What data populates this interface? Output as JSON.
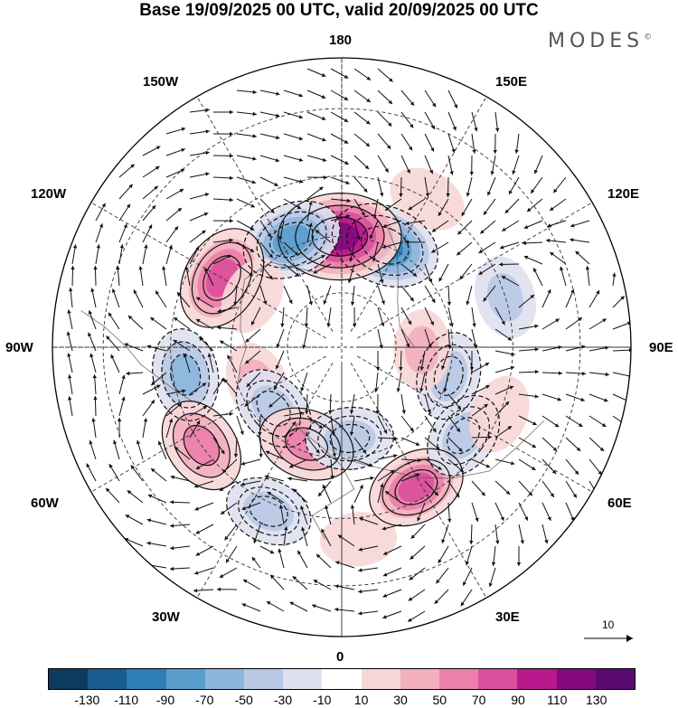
{
  "title": "Base 19/09/2025 00 UTC, valid 20/09/2025 00 UTC",
  "brand": "MODES",
  "brand_mark": "©",
  "longitude_labels": {
    "top": "180",
    "top_left": "150W",
    "top_right": "150E",
    "upper_left": "120W",
    "upper_right": "120E",
    "left": "90W",
    "right": "90E",
    "lower_left": "60W",
    "lower_right": "60E",
    "bottom_left": "30W",
    "bottom_right": "30E",
    "bottom": "0"
  },
  "reference_vector": {
    "value": "10"
  },
  "colorbar": {
    "ticks": [
      "-130",
      "-110",
      "-90",
      "-70",
      "-50",
      "-30",
      "-10",
      "10",
      "30",
      "50",
      "70",
      "90",
      "110",
      "130"
    ],
    "colors": [
      "#0d3b5e",
      "#1a5d8f",
      "#2f7db5",
      "#5b9dcc",
      "#8db6dc",
      "#b9c9e5",
      "#dfe1f0",
      "#ffffff",
      "#f7d7d7",
      "#f2b0bf",
      "#eb80aa",
      "#db4f9c",
      "#b8198c",
      "#87097f",
      "#5a0a6e"
    ]
  },
  "anomaly_centers": [
    {
      "lon": 157,
      "lat": 60,
      "value": -95,
      "sign": "negative"
    },
    {
      "lon": 181,
      "lat": 60,
      "value": 125,
      "sign": "positive"
    },
    {
      "lon": 205,
      "lat": 58,
      "value": -75,
      "sign": "negative"
    },
    {
      "lon": 240,
      "lat": 53,
      "value": 85,
      "sign": "positive"
    },
    {
      "lon": 280,
      "lat": 48,
      "value": -55,
      "sign": "negative"
    },
    {
      "lon": 305,
      "lat": 45,
      "value": 65,
      "sign": "positive"
    },
    {
      "lon": 336,
      "lat": 43,
      "value": -45,
      "sign": "negative"
    },
    {
      "lon": 293,
      "lat": 65,
      "value": 35,
      "sign": "positive"
    },
    {
      "lon": 312,
      "lat": 65,
      "value": -45,
      "sign": "negative"
    },
    {
      "lon": 340,
      "lat": 62,
      "value": 65,
      "sign": "positive"
    },
    {
      "lon": 5,
      "lat": 65,
      "value": -45,
      "sign": "negative"
    },
    {
      "lon": 28,
      "lat": 48,
      "value": 70,
      "sign": "positive"
    },
    {
      "lon": 54,
      "lat": 50,
      "value": -45,
      "sign": "negative"
    },
    {
      "lon": 75,
      "lat": 60,
      "value": -45,
      "sign": "negative"
    },
    {
      "lon": 88,
      "lat": 68,
      "value": 30,
      "sign": "positive"
    },
    {
      "lon": 107,
      "lat": 45,
      "value": -35,
      "sign": "negative"
    },
    {
      "lon": 67,
      "lat": 45,
      "value": 25,
      "sign": "positive"
    },
    {
      "lon": 240,
      "lat": 62,
      "value": 25,
      "sign": "positive"
    },
    {
      "lon": 5,
      "lat": 40,
      "value": 20,
      "sign": "positive"
    },
    {
      "lon": 150,
      "lat": 45,
      "value": 25,
      "sign": "positive"
    }
  ]
}
